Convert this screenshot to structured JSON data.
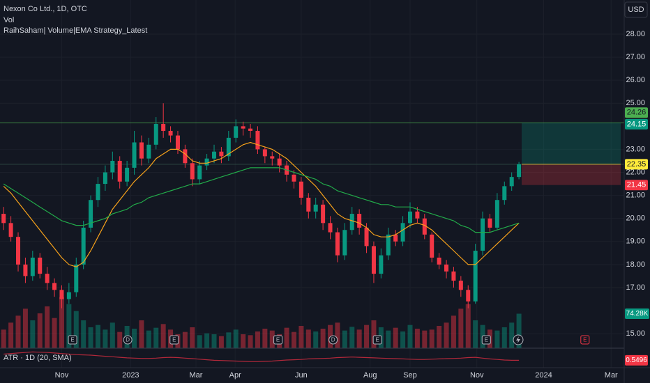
{
  "chart_data": {
    "type": "candlestick",
    "title": "Nexon Co Ltd., 1D, OTC",
    "indicator_labels": [
      "Vol",
      "RaihSaham| Volume|EMA Strategy_Latest"
    ],
    "currency": "USD",
    "up_color": "#089981",
    "down_color": "#f23645",
    "open": [
      20.2,
      19.8,
      19.2,
      18.0,
      17.5,
      18.3,
      17.6,
      17.2,
      16.9,
      16.5,
      16.8,
      18.0,
      19.6,
      20.8,
      21.5,
      22.0,
      22.5,
      21.6,
      22.2,
      23.3,
      22.6,
      23.2,
      24.1,
      23.8,
      23.6,
      23.0,
      22.4,
      21.7,
      22.3,
      22.6,
      22.9,
      22.7,
      23.5,
      24.0,
      23.9,
      23.8,
      23.0,
      22.7,
      22.6,
      22.3,
      21.9,
      21.6,
      20.9,
      20.3,
      20.6,
      19.8,
      19.4,
      18.4,
      19.5,
      20.2,
      19.6,
      18.8,
      17.6,
      18.4,
      19.3,
      19.0,
      19.8,
      20.3,
      20.0,
      19.3,
      18.3,
      18.0,
      17.7,
      17.3,
      16.9,
      16.4,
      18.6,
      20.0,
      19.6,
      20.8,
      21.4,
      21.8
    ],
    "high": [
      20.5,
      20.1,
      19.4,
      18.3,
      18.6,
      18.5,
      17.9,
      17.4,
      17.1,
      17.2,
      18.3,
      19.9,
      21.0,
      21.8,
      22.3,
      22.9,
      22.7,
      22.5,
      23.8,
      23.6,
      23.5,
      24.4,
      25.0,
      24.0,
      23.8,
      23.2,
      22.6,
      22.5,
      22.8,
      23.2,
      23.1,
      23.8,
      24.3,
      24.2,
      24.1,
      24.0,
      23.1,
      22.9,
      22.8,
      22.5,
      22.1,
      21.8,
      21.1,
      20.9,
      20.8,
      20.1,
      19.6,
      19.8,
      20.5,
      20.4,
      19.8,
      19.0,
      18.7,
      19.6,
      19.5,
      20.1,
      20.7,
      20.5,
      20.2,
      19.4,
      18.5,
      18.2,
      17.9,
      17.5,
      17.1,
      18.9,
      20.3,
      20.2,
      21.1,
      21.6,
      22.0,
      22.45
    ],
    "low": [
      19.5,
      19.0,
      17.7,
      17.2,
      17.3,
      17.4,
      16.9,
      16.6,
      16.1,
      16.3,
      16.6,
      17.8,
      19.4,
      20.5,
      21.2,
      21.7,
      21.3,
      21.4,
      21.9,
      22.3,
      22.4,
      23.0,
      23.5,
      23.3,
      22.8,
      22.2,
      21.4,
      21.5,
      22.1,
      22.4,
      22.4,
      22.5,
      23.3,
      23.6,
      23.5,
      22.8,
      22.4,
      22.3,
      22.0,
      21.6,
      21.3,
      20.6,
      20.0,
      20.0,
      19.5,
      19.1,
      18.1,
      18.2,
      19.3,
      19.3,
      18.5,
      17.2,
      17.4,
      18.2,
      18.8,
      18.8,
      19.6,
      19.8,
      19.1,
      18.1,
      17.8,
      17.4,
      17.0,
      16.6,
      16.1,
      16.3,
      18.4,
      19.4,
      19.5,
      20.6,
      21.2,
      21.7
    ],
    "close": [
      19.8,
      19.2,
      18.0,
      17.5,
      18.3,
      17.6,
      17.2,
      16.9,
      16.5,
      16.8,
      18.0,
      19.6,
      20.8,
      21.5,
      22.0,
      22.5,
      21.6,
      22.2,
      23.3,
      22.6,
      23.2,
      24.1,
      23.8,
      23.6,
      23.0,
      22.4,
      21.7,
      22.3,
      22.6,
      22.9,
      22.7,
      23.5,
      24.0,
      23.9,
      23.8,
      23.0,
      22.7,
      22.6,
      22.3,
      21.9,
      21.6,
      20.9,
      20.3,
      20.6,
      19.8,
      19.4,
      18.4,
      19.5,
      20.2,
      19.6,
      18.8,
      17.6,
      18.4,
      19.3,
      19.0,
      19.8,
      20.3,
      20.0,
      19.3,
      18.3,
      18.0,
      17.7,
      17.3,
      16.9,
      16.4,
      18.6,
      20.0,
      19.6,
      20.8,
      21.4,
      21.8,
      22.35
    ],
    "series": [
      {
        "color": "#f7a21b",
        "values": [
          21.4,
          21.1,
          20.7,
          20.3,
          19.9,
          19.5,
          19.1,
          18.7,
          18.3,
          18.0,
          17.9,
          18.1,
          18.6,
          19.2,
          19.8,
          20.4,
          20.8,
          21.2,
          21.6,
          21.9,
          22.2,
          22.6,
          22.8,
          23.0,
          23.0,
          22.8,
          22.5,
          22.4,
          22.4,
          22.5,
          22.6,
          22.8,
          23.0,
          23.2,
          23.3,
          23.2,
          23.1,
          23.0,
          22.8,
          22.6,
          22.3,
          22.0,
          21.7,
          21.4,
          21.0,
          20.6,
          20.2,
          20.0,
          19.9,
          19.8,
          19.6,
          19.3,
          19.2,
          19.2,
          19.3,
          19.5,
          19.7,
          19.8,
          19.7,
          19.5,
          19.2,
          18.9,
          18.6,
          18.3,
          18.0,
          18.0,
          18.3,
          18.6,
          18.9,
          19.2,
          19.5,
          19.8
        ]
      },
      {
        "color": "#22ab4a",
        "values": [
          21.5,
          21.3,
          21.1,
          20.9,
          20.7,
          20.5,
          20.3,
          20.1,
          19.9,
          19.8,
          19.7,
          19.7,
          19.8,
          19.9,
          20.0,
          20.2,
          20.3,
          20.4,
          20.6,
          20.7,
          20.9,
          21.0,
          21.1,
          21.2,
          21.3,
          21.4,
          21.5,
          21.5,
          21.6,
          21.7,
          21.8,
          21.9,
          22.0,
          22.1,
          22.2,
          22.2,
          22.2,
          22.2,
          22.2,
          22.1,
          22.0,
          21.9,
          21.8,
          21.7,
          21.5,
          21.4,
          21.2,
          21.1,
          21.0,
          20.9,
          20.8,
          20.7,
          20.6,
          20.6,
          20.5,
          20.5,
          20.5,
          20.4,
          20.3,
          20.2,
          20.1,
          20.0,
          19.9,
          19.7,
          19.6,
          19.4,
          19.4,
          19.4,
          19.5,
          19.6,
          19.7,
          19.8
        ]
      }
    ],
    "volume": {
      "values": [
        40,
        55,
        70,
        85,
        60,
        75,
        90,
        65,
        110,
        95,
        80,
        60,
        45,
        50,
        40,
        55,
        35,
        48,
        42,
        60,
        38,
        44,
        52,
        40,
        30,
        35,
        45,
        28,
        32,
        30,
        26,
        34,
        40,
        30,
        28,
        36,
        42,
        38,
        30,
        44,
        35,
        48,
        40,
        36,
        42,
        50,
        55,
        38,
        46,
        40,
        50,
        60,
        45,
        38,
        44,
        36,
        50,
        42,
        38,
        40,
        48,
        55,
        70,
        85,
        95,
        60,
        50,
        40,
        38,
        45,
        55,
        74.28
      ],
      "last_value_label": "74.28K",
      "lim": [
        0,
        150
      ]
    },
    "atr": {
      "name": "ATR · 1D (20, SMA)",
      "color": "#b2283a",
      "lim": [
        0.3,
        1.0
      ],
      "values": [
        0.78,
        0.8,
        0.82,
        0.84,
        0.86,
        0.85,
        0.84,
        0.82,
        0.8,
        0.78,
        0.76,
        0.75,
        0.74,
        0.72,
        0.7,
        0.68,
        0.66,
        0.64,
        0.63,
        0.62,
        0.62,
        0.63,
        0.65,
        0.66,
        0.65,
        0.63,
        0.61,
        0.59,
        0.57,
        0.55,
        0.54,
        0.53,
        0.52,
        0.51,
        0.5,
        0.5,
        0.51,
        0.52,
        0.54,
        0.56,
        0.57,
        0.58,
        0.6,
        0.61,
        0.62,
        0.63,
        0.65,
        0.66,
        0.67,
        0.66,
        0.65,
        0.64,
        0.63,
        0.62,
        0.61,
        0.6,
        0.59,
        0.58,
        0.58,
        0.59,
        0.6,
        0.61,
        0.62,
        0.63,
        0.65,
        0.66,
        0.63,
        0.6,
        0.58,
        0.56,
        0.55,
        0.5496
      ]
    },
    "position": {
      "target": 24.15,
      "entry": 22.35,
      "stop": 21.45
    },
    "high_marker": 24.26,
    "events": [
      {
        "x": 10,
        "label": "E"
      },
      {
        "x": 17.6,
        "label": "D"
      },
      {
        "x": 24,
        "label": "E"
      },
      {
        "x": 38.3,
        "label": "E"
      },
      {
        "x": 45.9,
        "label": "D"
      },
      {
        "x": 52,
        "label": "E"
      },
      {
        "x": 67,
        "label": "E"
      },
      {
        "x": 80.6,
        "label": "E",
        "color": "#f23645"
      }
    ],
    "xlim": [
      0,
      86
    ],
    "xticks": [
      {
        "value": 8.5,
        "label": "Nov"
      },
      {
        "value": 18,
        "label": "2023"
      },
      {
        "value": 27,
        "label": "Mar"
      },
      {
        "value": 32.4,
        "label": "Apr"
      },
      {
        "value": 41.5,
        "label": "Jun"
      },
      {
        "value": 51,
        "label": "Aug"
      },
      {
        "value": 56.5,
        "label": "Sep"
      },
      {
        "value": 65.7,
        "label": "Nov"
      },
      {
        "value": 74.9,
        "label": "2024"
      },
      {
        "value": 84.2,
        "label": "Mar"
      }
    ],
    "ylim": [
      14.37,
      29.48
    ],
    "yticks": [
      {
        "value": 28,
        "label": "28.00"
      },
      {
        "value": 27,
        "label": "27.00"
      },
      {
        "value": 26,
        "label": "26.00"
      },
      {
        "value": 25,
        "label": "25.00"
      },
      {
        "value": 23,
        "label": "23.00"
      },
      {
        "value": 22,
        "label": "22.00"
      },
      {
        "value": 21,
        "label": "21.00"
      },
      {
        "value": 20,
        "label": "20.00"
      },
      {
        "value": 19,
        "label": "19.00"
      },
      {
        "value": 18,
        "label": "18.00"
      },
      {
        "value": 17,
        "label": "17.00"
      },
      {
        "value": 15,
        "label": "15.00"
      }
    ],
    "grid": true
  }
}
